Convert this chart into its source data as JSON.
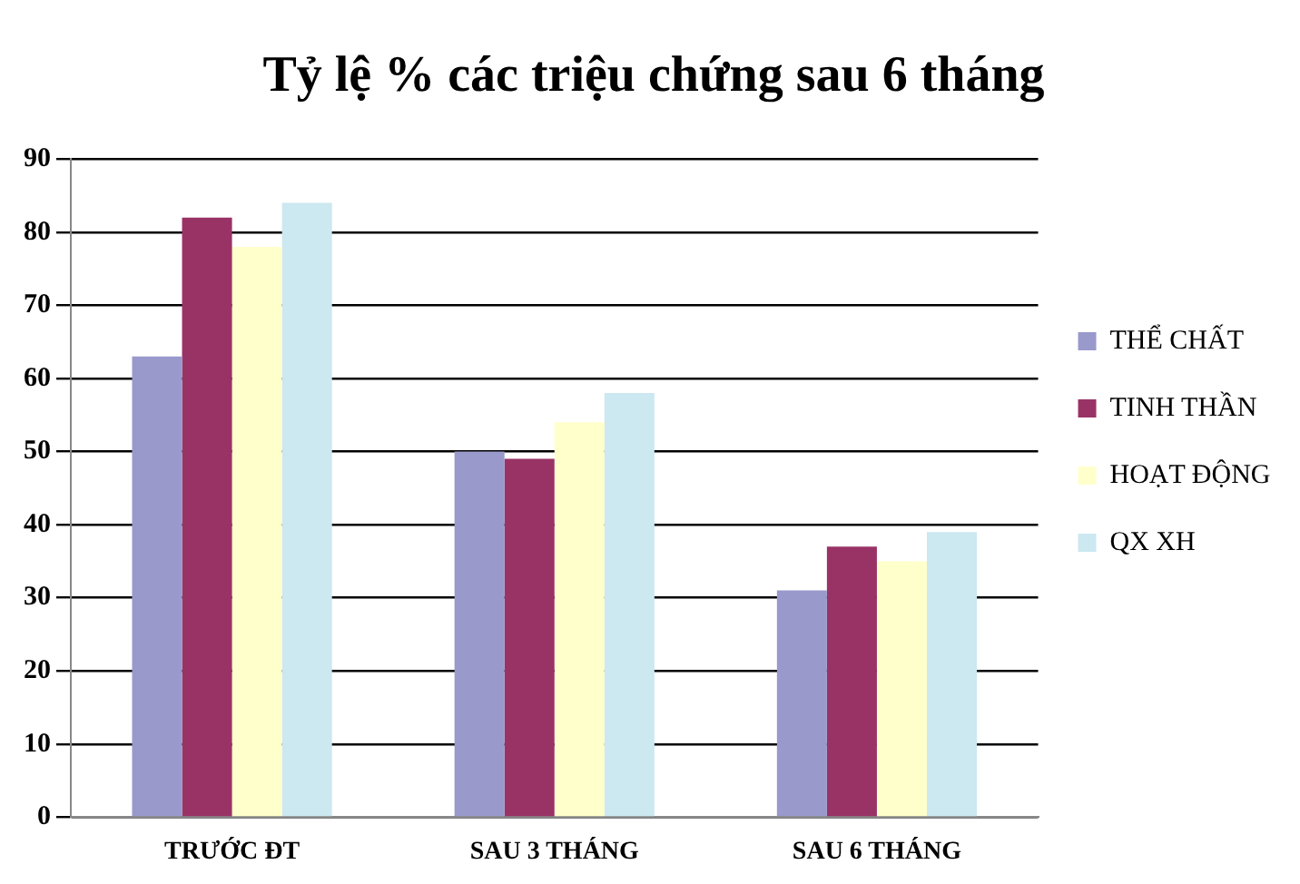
{
  "chart_data": {
    "type": "bar",
    "title": "Tỷ lệ % các triệu chứng sau 6 tháng",
    "categories": [
      "TRƯỚC ĐT",
      "SAU 3 THÁNG",
      "SAU 6 THÁNG"
    ],
    "series": [
      {
        "name": "THỂ CHẤT",
        "color": "#9999cc",
        "values": [
          63,
          50,
          31
        ]
      },
      {
        "name": "TINH THẦN",
        "color": "#993366",
        "values": [
          82,
          49,
          37
        ]
      },
      {
        "name": "HOẠT ĐỘNG",
        "color": "#ffffcc",
        "values": [
          78,
          54,
          35
        ]
      },
      {
        "name": "QX XH",
        "color": "#cce8f0",
        "values": [
          84,
          58,
          39
        ]
      }
    ],
    "ylim": [
      0,
      90
    ],
    "yticks": [
      0,
      10,
      20,
      30,
      40,
      50,
      60,
      70,
      80,
      90
    ],
    "grid": "y",
    "legend": "right"
  }
}
